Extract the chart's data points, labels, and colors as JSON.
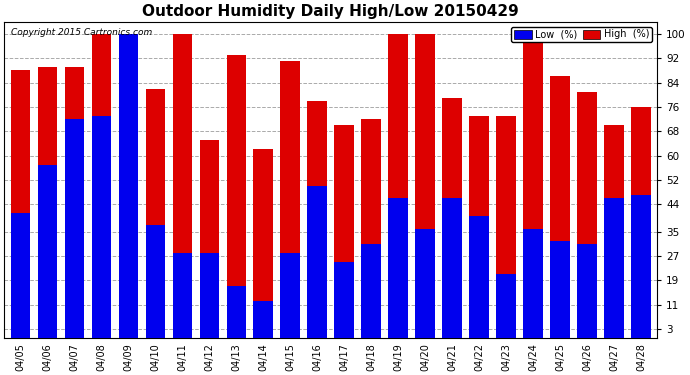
{
  "title": "Outdoor Humidity Daily High/Low 20150429",
  "copyright": "Copyright 2015 Cartronics.com",
  "legend_low": "Low  (%)",
  "legend_high": "High  (%)",
  "low_color": "#0000ee",
  "high_color": "#dd0000",
  "background_color": "#ffffff",
  "dates": [
    "04/05",
    "04/06",
    "04/07",
    "04/08",
    "04/09",
    "04/10",
    "04/11",
    "04/12",
    "04/13",
    "04/14",
    "04/15",
    "04/16",
    "04/17",
    "04/18",
    "04/19",
    "04/20",
    "04/21",
    "04/22",
    "04/23",
    "04/24",
    "04/25",
    "04/26",
    "04/27",
    "04/28"
  ],
  "high_values": [
    88,
    89,
    89,
    100,
    100,
    82,
    100,
    65,
    93,
    62,
    91,
    78,
    70,
    72,
    100,
    100,
    79,
    73,
    73,
    100,
    86,
    81,
    70,
    76
  ],
  "low_values": [
    41,
    57,
    72,
    73,
    100,
    37,
    28,
    28,
    17,
    12,
    28,
    50,
    25,
    31,
    46,
    36,
    46,
    40,
    21,
    36,
    32,
    31,
    46,
    47
  ],
  "yticks": [
    3,
    11,
    19,
    27,
    35,
    44,
    52,
    60,
    68,
    76,
    84,
    92,
    100
  ],
  "ylim": [
    0,
    104
  ],
  "bar_width": 0.72,
  "grid_color": "#aaaaaa",
  "title_fontsize": 11,
  "label_fontsize": 7,
  "tick_fontsize": 7.5,
  "figwidth": 6.9,
  "figheight": 3.75,
  "dpi": 100
}
